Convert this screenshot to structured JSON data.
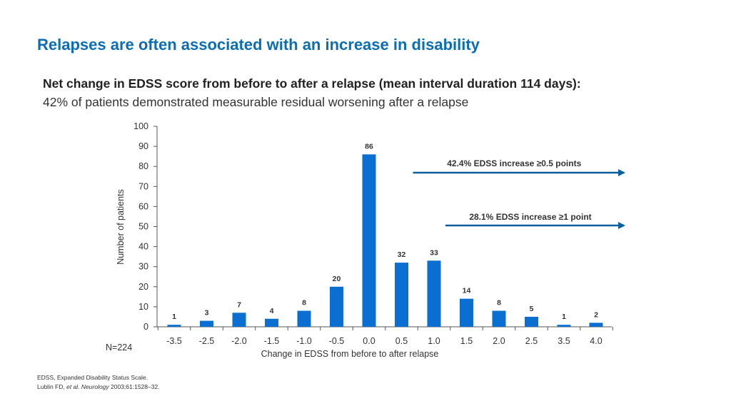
{
  "header": {
    "title": "Relapses are often associated with an increase in disability",
    "subtitle": "Net change in EDSS score from before to after a relapse (mean interval duration 114 days):",
    "subtitle2": "42% of patients demonstrated measurable residual worsening after a relapse"
  },
  "chart_data": {
    "type": "bar",
    "categories": [
      "-3.5",
      "-2.5",
      "-2.0",
      "-1.5",
      "-1.0",
      "-0.5",
      "0.0",
      "0.5",
      "1.0",
      "1.5",
      "2.0",
      "2.5",
      "3.5",
      "4.0"
    ],
    "values": [
      1,
      3,
      7,
      4,
      8,
      20,
      86,
      32,
      33,
      14,
      8,
      5,
      1,
      2
    ],
    "xlabel": "Change in EDSS from before to after relapse",
    "ylabel": "Number of patients",
    "ylim": [
      0,
      100
    ],
    "yticks": [
      0,
      10,
      20,
      30,
      40,
      50,
      60,
      70,
      80,
      90,
      100
    ],
    "bar_color": "#0b6fd1",
    "arrow_color": "#0b5f9e",
    "annotations": [
      {
        "text": "42.4% EDSS increase ≥0.5 points",
        "from_category": "0.5"
      },
      {
        "text": "28.1% EDSS increase ≥1 point",
        "from_category": "1.0"
      }
    ]
  },
  "sample_size": "N=224",
  "footnotes": {
    "line1": "EDSS, Expanded Disability Status Scale.",
    "line2_pre": "Lublin FD, ",
    "line2_italic": "et al. Neurology",
    "line2_post": " 2003;61:1528–32."
  }
}
